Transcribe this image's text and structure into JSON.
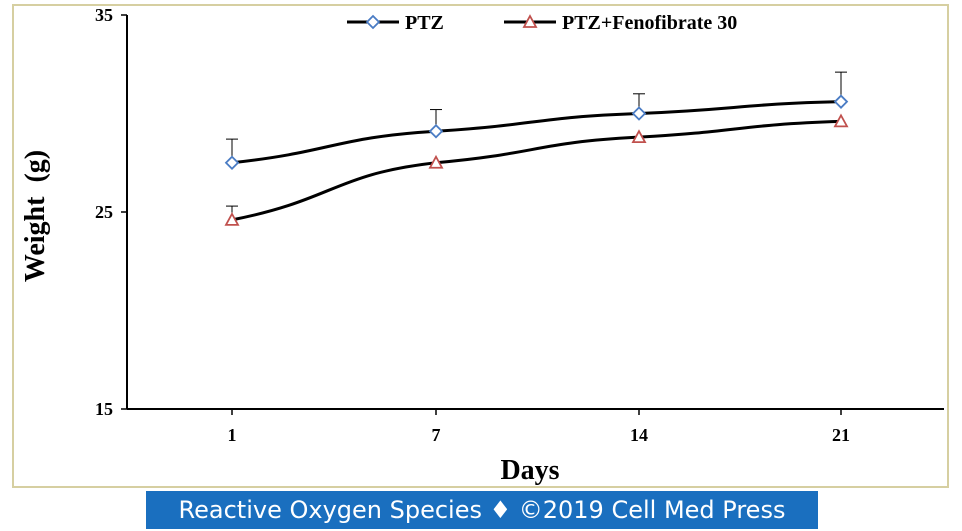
{
  "chart_data": {
    "type": "line",
    "categories": [
      "1",
      "7",
      "14",
      "21"
    ],
    "xlabel": "Days",
    "ylabel": "Weight  (g)",
    "ylim": [
      15,
      35
    ],
    "yticks": [
      "15",
      "25",
      "35"
    ],
    "grid": false,
    "legend_position": "top",
    "error_bars": "upper",
    "series": [
      {
        "name": "PTZ",
        "marker": "diamond",
        "color": "#4a7cc4",
        "values": [
          27.5,
          29.1,
          30.0,
          30.6
        ],
        "errors": [
          1.2,
          1.1,
          1.0,
          1.5
        ]
      },
      {
        "name": "PTZ+Fenofibrate 30",
        "marker": "triangle",
        "color": "#c0504d",
        "values": [
          24.6,
          27.5,
          28.8,
          29.6
        ],
        "errors": [
          0.7,
          0.0,
          0.0,
          0.0
        ]
      }
    ]
  },
  "footer": {
    "text": "Reactive Oxygen Species ♦ ©2019 Cell Med Press",
    "bg_color": "#1a6fbf"
  }
}
